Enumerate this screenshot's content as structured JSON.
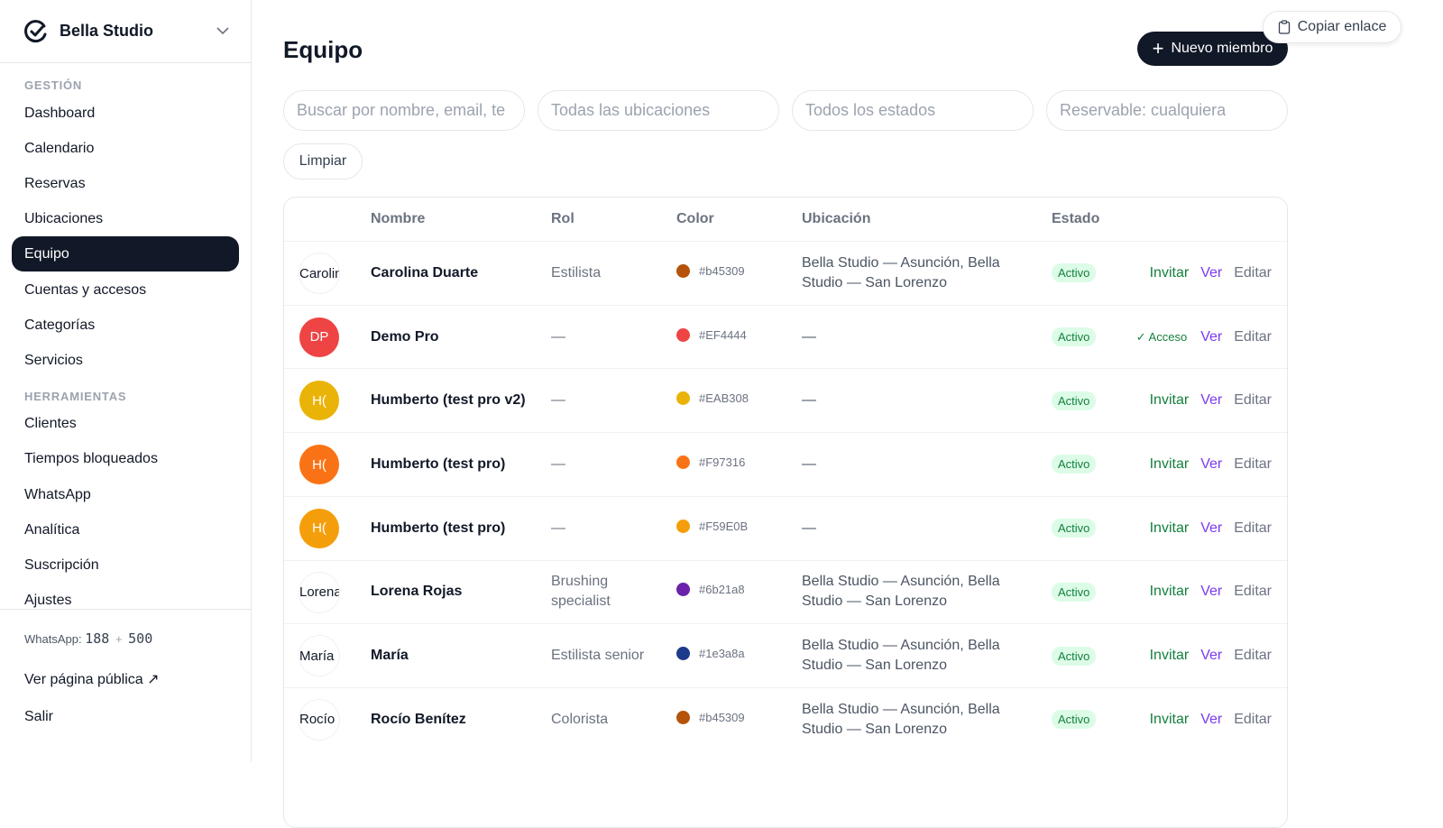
{
  "sidebar": {
    "brand": "Bella Studio",
    "sections": [
      {
        "heading": "GESTIÓN",
        "items": [
          {
            "label": "Dashboard"
          },
          {
            "label": "Calendario"
          },
          {
            "label": "Reservas"
          },
          {
            "label": "Ubicaciones"
          },
          {
            "label": "Equipo",
            "active": true
          },
          {
            "label": "Cuentas y accesos"
          },
          {
            "label": "Categorías"
          },
          {
            "label": "Servicios"
          }
        ]
      },
      {
        "heading": "HERRAMIENTAS",
        "items": [
          {
            "label": "Clientes"
          },
          {
            "label": "Tiempos bloqueados"
          },
          {
            "label": "WhatsApp"
          },
          {
            "label": "Analítica"
          },
          {
            "label": "Suscripción"
          },
          {
            "label": "Ajustes"
          }
        ]
      }
    ],
    "footer": {
      "whatsapp_label": "WhatsApp:",
      "whatsapp_used": "188",
      "whatsapp_plus": "+",
      "whatsapp_extra": "500",
      "public_link": "Ver página pública ↗",
      "logout": "Salir"
    }
  },
  "header": {
    "title": "Equipo",
    "new_button": "Nuevo miembro",
    "copy_link": "Copiar enlace"
  },
  "filters": {
    "fields": [
      "Buscar por nombre, email, te",
      "Todas las ubicaciones",
      "Todos los estados",
      "Reservable: cualquiera"
    ],
    "clear": "Limpiar"
  },
  "table": {
    "columns": [
      "Nombre",
      "Rol",
      "Color",
      "Ubicación",
      "Estado"
    ],
    "rows": [
      {
        "avatar": {
          "alt": "Carolina Duarte"
        },
        "name": "Carolina Duarte",
        "role": "Estilista",
        "color": "#b45309",
        "location": "Bella Studio — Asunción, Bella Studio — San Lorenzo",
        "status": "Activo",
        "actions": [
          "Invitar",
          "Ver",
          "Editar"
        ]
      },
      {
        "avatar": {
          "initials": "DP"
        },
        "name": "Demo Pro",
        "role": "—",
        "color": "#EF4444",
        "location": "—",
        "status": "Activo",
        "actions": [
          "✓ Acceso",
          "Ver",
          "Editar"
        ]
      },
      {
        "avatar": {
          "initials": "H("
        },
        "name": "Humberto (test pro v2)",
        "role": "—",
        "color": "#EAB308",
        "location": "—",
        "status": "Activo",
        "actions": [
          "Invitar",
          "Ver",
          "Editar"
        ]
      },
      {
        "avatar": {
          "initials": "H("
        },
        "name": "Humberto (test pro)",
        "role": "—",
        "color": "#F97316",
        "location": "—",
        "status": "Activo",
        "actions": [
          "Invitar",
          "Ver",
          "Editar"
        ]
      },
      {
        "avatar": {
          "initials": "H("
        },
        "name": "Humberto (test pro)",
        "role": "—",
        "color": "#F59E0B",
        "location": "—",
        "status": "Activo",
        "actions": [
          "Invitar",
          "Ver",
          "Editar"
        ]
      },
      {
        "avatar": {
          "alt": "Lorena Rojas"
        },
        "name": "Lorena Rojas",
        "role": "Brushing specialist",
        "color": "#6b21a8",
        "location": "Bella Studio — Asunción, Bella Studio — San Lorenzo",
        "status": "Activo",
        "actions": [
          "Invitar",
          "Ver",
          "Editar"
        ]
      },
      {
        "avatar": {
          "alt": "María"
        },
        "name": "María",
        "role": "Estilista senior",
        "color": "#1e3a8a",
        "location": "Bella Studio — Asunción, Bella Studio — San Lorenzo",
        "status": "Activo",
        "actions": [
          "Invitar",
          "Ver",
          "Editar"
        ]
      },
      {
        "avatar": {
          "alt": "Rocío Benítez"
        },
        "name": "Rocío Benítez",
        "role": "Colorista",
        "color": "#b45309",
        "location": "Bella Studio — Asunción, Bella Studio — San Lorenzo",
        "status": "Activo",
        "actions": [
          "Invitar",
          "Ver",
          "Editar"
        ]
      }
    ]
  }
}
